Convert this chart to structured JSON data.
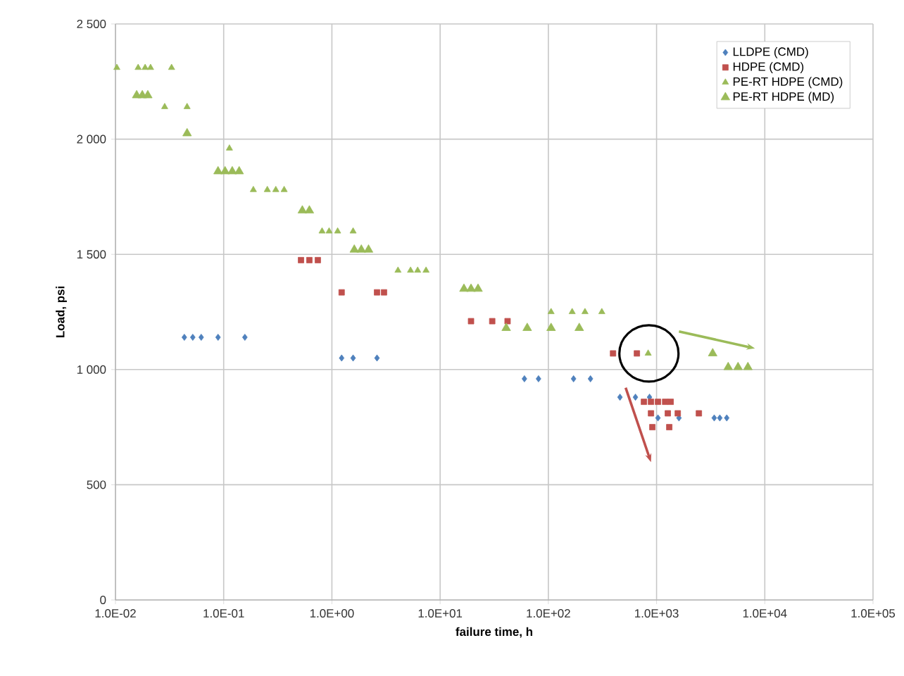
{
  "chart_data": {
    "type": "scatter",
    "xlabel": "failure time, h",
    "ylabel": "Load, psi",
    "log": "x",
    "grid": true,
    "legend": "top right",
    "xlim": [
      0.01,
      100000
    ],
    "ylim": [
      0,
      2500
    ],
    "xticks": [
      {
        "value": 0.01,
        "label": "1.0E-02"
      },
      {
        "value": 0.1,
        "label": "1.0E-01"
      },
      {
        "value": 1,
        "label": "1.0E+00"
      },
      {
        "value": 10,
        "label": "1.0E+01"
      },
      {
        "value": 100,
        "label": "1.0E+02"
      },
      {
        "value": 1000,
        "label": "1.0E+03"
      },
      {
        "value": 10000,
        "label": "1.0E+04"
      },
      {
        "value": 100000,
        "label": "1.0E+05"
      }
    ],
    "yticks": [
      0,
      {
        "value": 500,
        "label": "500"
      },
      {
        "value": 1000,
        "label": "1 000"
      },
      {
        "value": 1500,
        "label": "1 500"
      },
      {
        "value": 2000,
        "label": "2 000"
      },
      {
        "value": 2500,
        "label": "2 500"
      }
    ],
    "series": [
      {
        "name": "LLDPE (CMD)",
        "color": "#4f81bd",
        "marker": "diamond",
        "x": [
          0.0433,
          0.0518,
          0.062,
          0.0887,
          0.157,
          1.23,
          1.57,
          2.61,
          60.1,
          81.1,
          171,
          245,
          459,
          638,
          861,
          1030,
          1610,
          3410,
          3840,
          4450
        ],
        "values": [
          1140,
          1140,
          1140,
          1140,
          1140,
          1050,
          1050,
          1050,
          960,
          960,
          960,
          960,
          880,
          880,
          880,
          790,
          790,
          790,
          790,
          790
        ]
      },
      {
        "name": "HDPE (CMD)",
        "color": "#c0504d",
        "marker": "square",
        "x": [
          0.518,
          0.619,
          0.741,
          1.23,
          2.61,
          3.03,
          19.3,
          30.3,
          42.0,
          396,
          658,
          764,
          888,
          1030,
          1200,
          1350,
          888,
          1270,
          1570,
          2460,
          914,
          1310
        ],
        "values": [
          1475,
          1475,
          1475,
          1335,
          1335,
          1335,
          1210,
          1210,
          1210,
          1070,
          1070,
          860,
          860,
          860,
          860,
          860,
          810,
          810,
          810,
          810,
          750,
          750
        ]
      },
      {
        "name": "PE-RT HDPE (CMD)",
        "color": "#9bbb59",
        "marker": "triangle",
        "x": [
          0.0103,
          0.0162,
          0.0188,
          0.0211,
          0.033,
          0.0285,
          0.0459,
          0.113,
          0.188,
          0.253,
          0.303,
          0.362,
          0.811,
          0.942,
          1.13,
          1.57,
          4.08,
          5.33,
          6.2,
          7.41,
          106,
          166,
          218,
          312,
          836
        ],
        "values": [
          2310,
          2310,
          2310,
          2310,
          2310,
          2140,
          2140,
          1960,
          1780,
          1780,
          1780,
          1780,
          1600,
          1600,
          1600,
          1600,
          1430,
          1430,
          1430,
          1430,
          1250,
          1250,
          1250,
          1250,
          1070
        ]
      },
      {
        "name": "PE-RT HDPE (MD)",
        "color": "#9bbb59",
        "marker": "triangle",
        "x": [
          0.0157,
          0.0177,
          0.0199,
          0.0459,
          0.0887,
          0.103,
          0.12,
          0.139,
          0.533,
          0.619,
          1.61,
          1.87,
          2.18,
          16.6,
          19.3,
          22.4,
          40.8,
          63.8,
          106,
          193,
          3300,
          4590,
          5660,
          6980
        ],
        "values": [
          2190,
          2190,
          2190,
          2025,
          1860,
          1860,
          1860,
          1860,
          1690,
          1690,
          1520,
          1520,
          1520,
          1350,
          1350,
          1350,
          1180,
          1180,
          1180,
          1180,
          1070,
          1010,
          1010,
          1010
        ]
      }
    ]
  }
}
